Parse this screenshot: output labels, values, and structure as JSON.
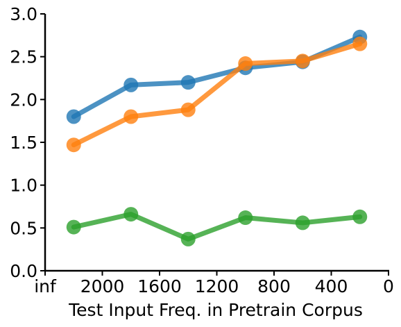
{
  "chart_data": {
    "type": "line",
    "title": "",
    "xlabel": "Test Input Freq. in Pretrain Corpus",
    "ylabel": "",
    "x": [
      2200,
      1800,
      1400,
      1000,
      600,
      200
    ],
    "xlim": [
      2400,
      0
    ],
    "xticks": [
      2400,
      2000,
      1600,
      1200,
      800,
      400,
      0
    ],
    "xtick_labels": [
      "inf",
      "2000",
      "1600",
      "1200",
      "800",
      "400",
      "0"
    ],
    "ylim": [
      0,
      3
    ],
    "yticks": [
      0,
      0.5,
      1,
      1.5,
      2,
      2.5,
      3
    ],
    "ytick_labels": [
      "0.0",
      "0.5",
      "1.0",
      "1.5",
      "2.0",
      "2.5",
      "3.0"
    ],
    "grid": false,
    "legend": "none",
    "series": [
      {
        "color": "#1f77b4",
        "values": [
          1.8,
          2.17,
          2.2,
          2.37,
          2.44,
          2.73
        ]
      },
      {
        "color": "#ff7f0e",
        "values": [
          1.47,
          1.8,
          1.88,
          2.42,
          2.45,
          2.65
        ]
      },
      {
        "color": "#2ca02c",
        "values": [
          0.51,
          0.66,
          0.37,
          0.62,
          0.56,
          0.63
        ]
      }
    ]
  }
}
